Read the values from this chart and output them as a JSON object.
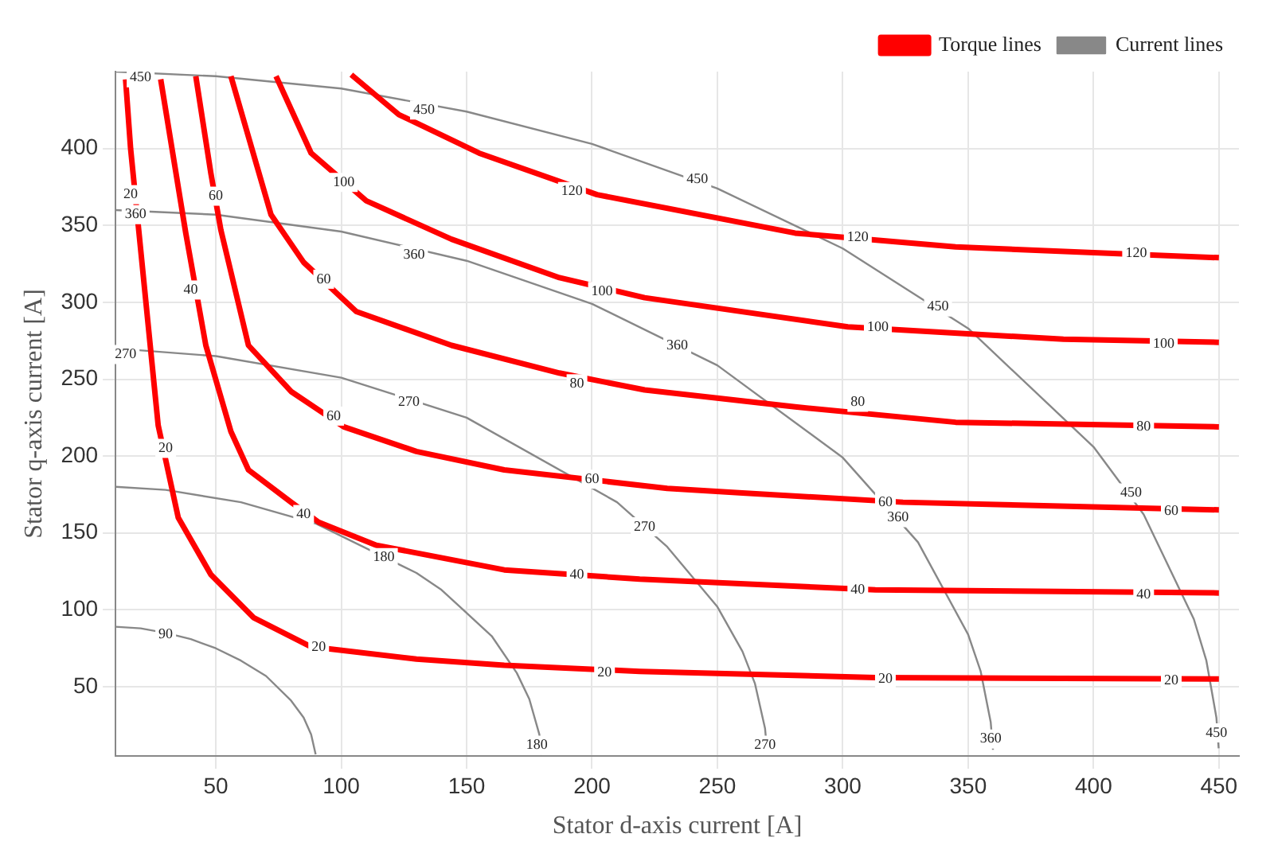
{
  "chart_data": {
    "type": "line",
    "xlabel": "Stator d-axis current [A]",
    "ylabel": "Stator q-axis current [A]",
    "xlim": [
      10,
      458
    ],
    "ylim": [
      5,
      450
    ],
    "xticks": [
      50,
      100,
      150,
      200,
      250,
      300,
      350,
      400,
      450
    ],
    "yticks": [
      50,
      100,
      150,
      200,
      250,
      300,
      350,
      400
    ],
    "grid": true,
    "legend": "top right",
    "marker": "none",
    "line_style": "solid",
    "series": [
      {
        "name": "Torque lines",
        "color": "#ff0000",
        "x": [
          14,
          16,
          27,
          31,
          35,
          48,
          65,
          88,
          130,
          165,
          219,
          313,
          450,
          null,
          28,
          38,
          46,
          56,
          63,
          80,
          91,
          114,
          165,
          219,
          313,
          450,
          null,
          42,
          48,
          52,
          63,
          80,
          101,
          130,
          165,
          230,
          260,
          324,
          450,
          null,
          56,
          72,
          85,
          106,
          144,
          187,
          221,
          281,
          345,
          450,
          null,
          74,
          88,
          110,
          144,
          187,
          221,
          302,
          388,
          450,
          null,
          104,
          123,
          155,
          202,
          281,
          345,
          450
        ],
        "values": [
          445,
          400,
          220,
          190,
          160,
          123,
          95,
          76,
          68,
          64,
          60,
          56,
          55,
          null,
          445,
          345,
          272,
          216,
          191,
          170,
          157,
          142,
          126,
          120,
          113,
          111,
          null,
          447,
          384,
          347,
          272,
          242,
          219,
          203,
          191,
          179,
          176,
          170,
          165,
          null,
          447,
          357,
          326,
          294,
          272,
          254,
          243,
          232,
          222,
          219,
          null,
          447,
          397,
          366,
          341,
          316,
          303,
          284,
          276,
          274,
          null,
          448,
          422,
          397,
          370,
          345,
          336,
          329
        ]
      },
      {
        "name": "Current lines",
        "color": "#888888",
        "x": [
          10,
          20,
          30,
          40,
          50,
          60,
          70,
          80,
          85,
          88,
          89.8,
          null,
          10,
          30,
          60,
          90,
          130,
          140,
          160,
          170,
          175,
          179,
          179.9,
          null,
          10,
          50,
          100,
          150,
          210,
          230,
          250,
          260,
          265,
          269,
          269.9,
          null,
          10,
          50,
          100,
          150,
          200,
          250,
          300,
          330,
          350,
          355,
          359,
          359.9,
          null,
          10,
          50,
          100,
          150,
          200,
          250,
          300,
          350,
          400,
          420,
          440,
          445,
          449,
          449.9
        ],
        "values": [
          89,
          88,
          85,
          81,
          75,
          67,
          57,
          41,
          30,
          19,
          6,
          null,
          180,
          178,
          170,
          156,
          124,
          113,
          83,
          59,
          42,
          19,
          6,
          null,
          270,
          265,
          251,
          225,
          170,
          141,
          102,
          73,
          52,
          23,
          7,
          null,
          360,
          357,
          346,
          327,
          299,
          259,
          199,
          144,
          84,
          60,
          27,
          9,
          null,
          450,
          447,
          439,
          424,
          403,
          374,
          335,
          283,
          206,
          162,
          94,
          67,
          30,
          10
        ]
      }
    ],
    "annotations": [
      {
        "text": "20",
        "x": 16,
        "y": 370
      },
      {
        "text": "20",
        "x": 30,
        "y": 205
      },
      {
        "text": "20",
        "x": 91,
        "y": 76
      },
      {
        "text": "20",
        "x": 205,
        "y": 59
      },
      {
        "text": "20",
        "x": 317,
        "y": 55
      },
      {
        "text": "20",
        "x": 431,
        "y": 54
      },
      {
        "text": "40",
        "x": 40,
        "y": 308
      },
      {
        "text": "40",
        "x": 85,
        "y": 162
      },
      {
        "text": "40",
        "x": 194,
        "y": 123
      },
      {
        "text": "40",
        "x": 306,
        "y": 113
      },
      {
        "text": "40",
        "x": 420,
        "y": 110
      },
      {
        "text": "60",
        "x": 50,
        "y": 369
      },
      {
        "text": "60",
        "x": 93,
        "y": 315
      },
      {
        "text": "60",
        "x": 97,
        "y": 226
      },
      {
        "text": "60",
        "x": 200,
        "y": 185
      },
      {
        "text": "60",
        "x": 317,
        "y": 170
      },
      {
        "text": "60",
        "x": 431,
        "y": 164
      },
      {
        "text": "80",
        "x": 194,
        "y": 247
      },
      {
        "text": "80",
        "x": 306,
        "y": 235
      },
      {
        "text": "80",
        "x": 420,
        "y": 219
      },
      {
        "text": "100",
        "x": 101,
        "y": 378
      },
      {
        "text": "100",
        "x": 204,
        "y": 307
      },
      {
        "text": "100",
        "x": 314,
        "y": 284
      },
      {
        "text": "100",
        "x": 428,
        "y": 273
      },
      {
        "text": "120",
        "x": 192,
        "y": 372
      },
      {
        "text": "120",
        "x": 306,
        "y": 342
      },
      {
        "text": "120",
        "x": 417,
        "y": 332
      },
      {
        "text": "90",
        "x": 30,
        "y": 84
      },
      {
        "text": "180",
        "x": 117,
        "y": 134
      },
      {
        "text": "180",
        "x": 178,
        "y": 12
      },
      {
        "text": "270",
        "x": 14,
        "y": 266
      },
      {
        "text": "270",
        "x": 127,
        "y": 235
      },
      {
        "text": "270",
        "x": 221,
        "y": 154
      },
      {
        "text": "270",
        "x": 269,
        "y": 12
      },
      {
        "text": "360",
        "x": 18,
        "y": 357
      },
      {
        "text": "360",
        "x": 129,
        "y": 331
      },
      {
        "text": "360",
        "x": 234,
        "y": 272
      },
      {
        "text": "360",
        "x": 322,
        "y": 160
      },
      {
        "text": "360",
        "x": 359,
        "y": 16
      },
      {
        "text": "450",
        "x": 20,
        "y": 446
      },
      {
        "text": "450",
        "x": 133,
        "y": 425
      },
      {
        "text": "450",
        "x": 242,
        "y": 380
      },
      {
        "text": "450",
        "x": 338,
        "y": 297
      },
      {
        "text": "450",
        "x": 415,
        "y": 176
      },
      {
        "text": "450",
        "x": 449,
        "y": 20
      }
    ]
  }
}
